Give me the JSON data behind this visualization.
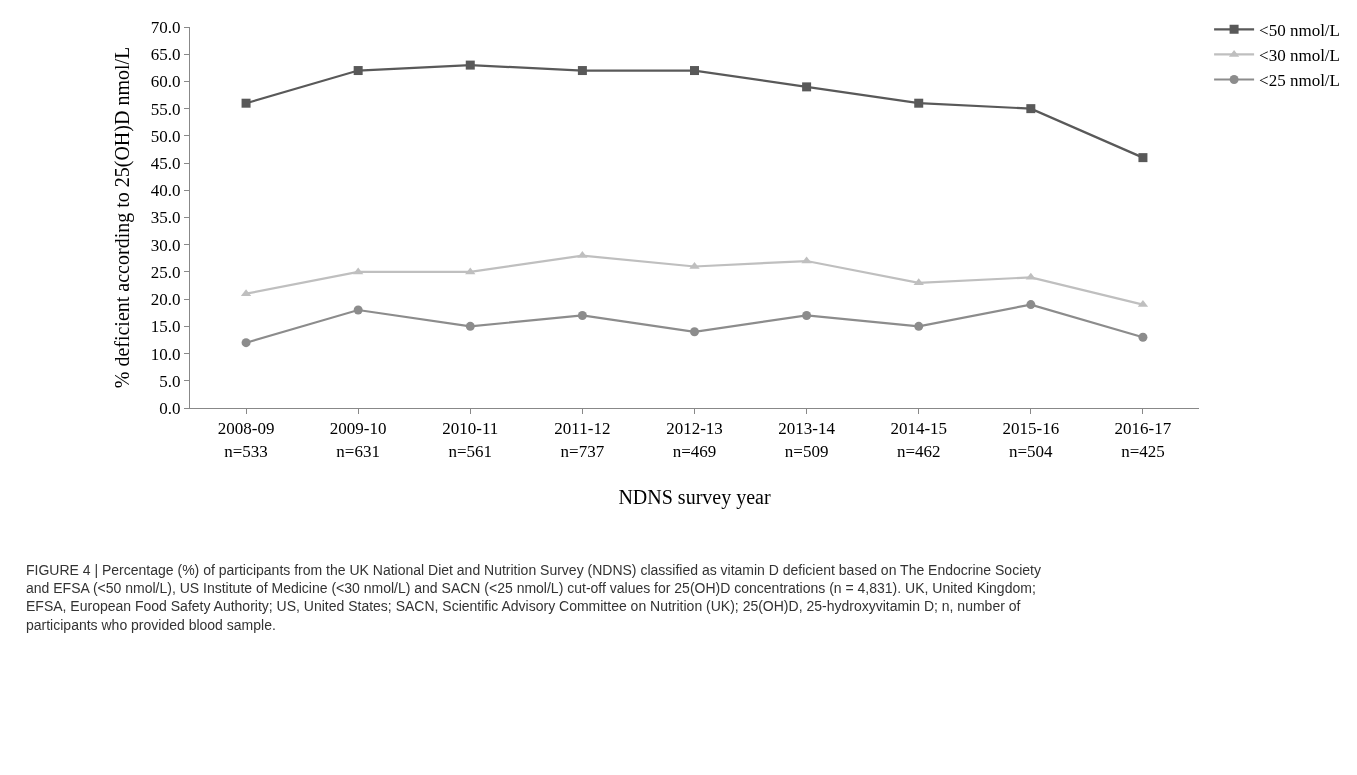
{
  "chart_data": {
    "type": "line",
    "categories": [
      "2008-09\nn=533",
      "2009-10\nn=631",
      "2010-11\nn=561",
      "2011-12\nn=737",
      "2012-13\nn=469",
      "2013-14\nn=509",
      "2014-15\nn=462",
      "2015-16\nn=504",
      "2016-17\nn=425"
    ],
    "series": [
      {
        "name": "<50 nmol/L",
        "color": "#595959",
        "marker": "square",
        "values": [
          56,
          62,
          63,
          62,
          62,
          59,
          56,
          55,
          46
        ]
      },
      {
        "name": "<30 nmol/L",
        "color": "#bfbfbf",
        "marker": "triangle",
        "values": [
          21,
          25,
          25,
          28,
          26,
          27,
          23,
          24,
          19
        ]
      },
      {
        "name": "<25 nmol/L",
        "color": "#8c8c8c",
        "marker": "circle",
        "values": [
          12,
          18,
          15,
          17,
          14,
          17,
          15,
          19,
          13
        ]
      }
    ],
    "ylim": [
      0,
      70
    ],
    "yticks": [
      {
        "value": 0,
        "label": "0.0"
      },
      {
        "value": 5,
        "label": "5.0"
      },
      {
        "value": 10,
        "label": "10.0"
      },
      {
        "value": 15,
        "label": "15.0"
      },
      {
        "value": 20,
        "label": "20.0"
      },
      {
        "value": 25,
        "label": "25.0"
      },
      {
        "value": 30,
        "label": "30.0"
      },
      {
        "value": 35,
        "label": "35.0"
      },
      {
        "value": 40,
        "label": "40.0"
      },
      {
        "value": 45,
        "label": "45.0"
      },
      {
        "value": 50,
        "label": "50.0"
      },
      {
        "value": 55,
        "label": "55.0"
      },
      {
        "value": 60,
        "label": "60.0"
      },
      {
        "value": 65,
        "label": "65.0"
      },
      {
        "value": 70,
        "label": "70.0"
      }
    ],
    "xlabel": "NDNS survey year",
    "ylabel": "% deficient according to 25(OH)D nmol/L",
    "legend": "top right",
    "grid": false,
    "line_style": "solid",
    "annotations": [
      "FIGURE 4 | Percentage (%) of participants from the UK National Diet and Nutrition Survey (NDNS) classified as vitamin D deficient based on The Endocrine Society\nand EFSA (<50 nmol/L), US Institute of Medicine (<30 nmol/L) and SACN (<25 nmol/L) cut-off values for 25(OH)D concentrations (n = 4,831). UK, United Kingdom;\nEFSA, European Food Safety Authority; US, United States; SACN, Scientific Advisory Committee on Nutrition (UK); 25(OH)D, 25-hydroxyvitamin D; n, number of\nparticipants who provided blood sample."
    ]
  }
}
